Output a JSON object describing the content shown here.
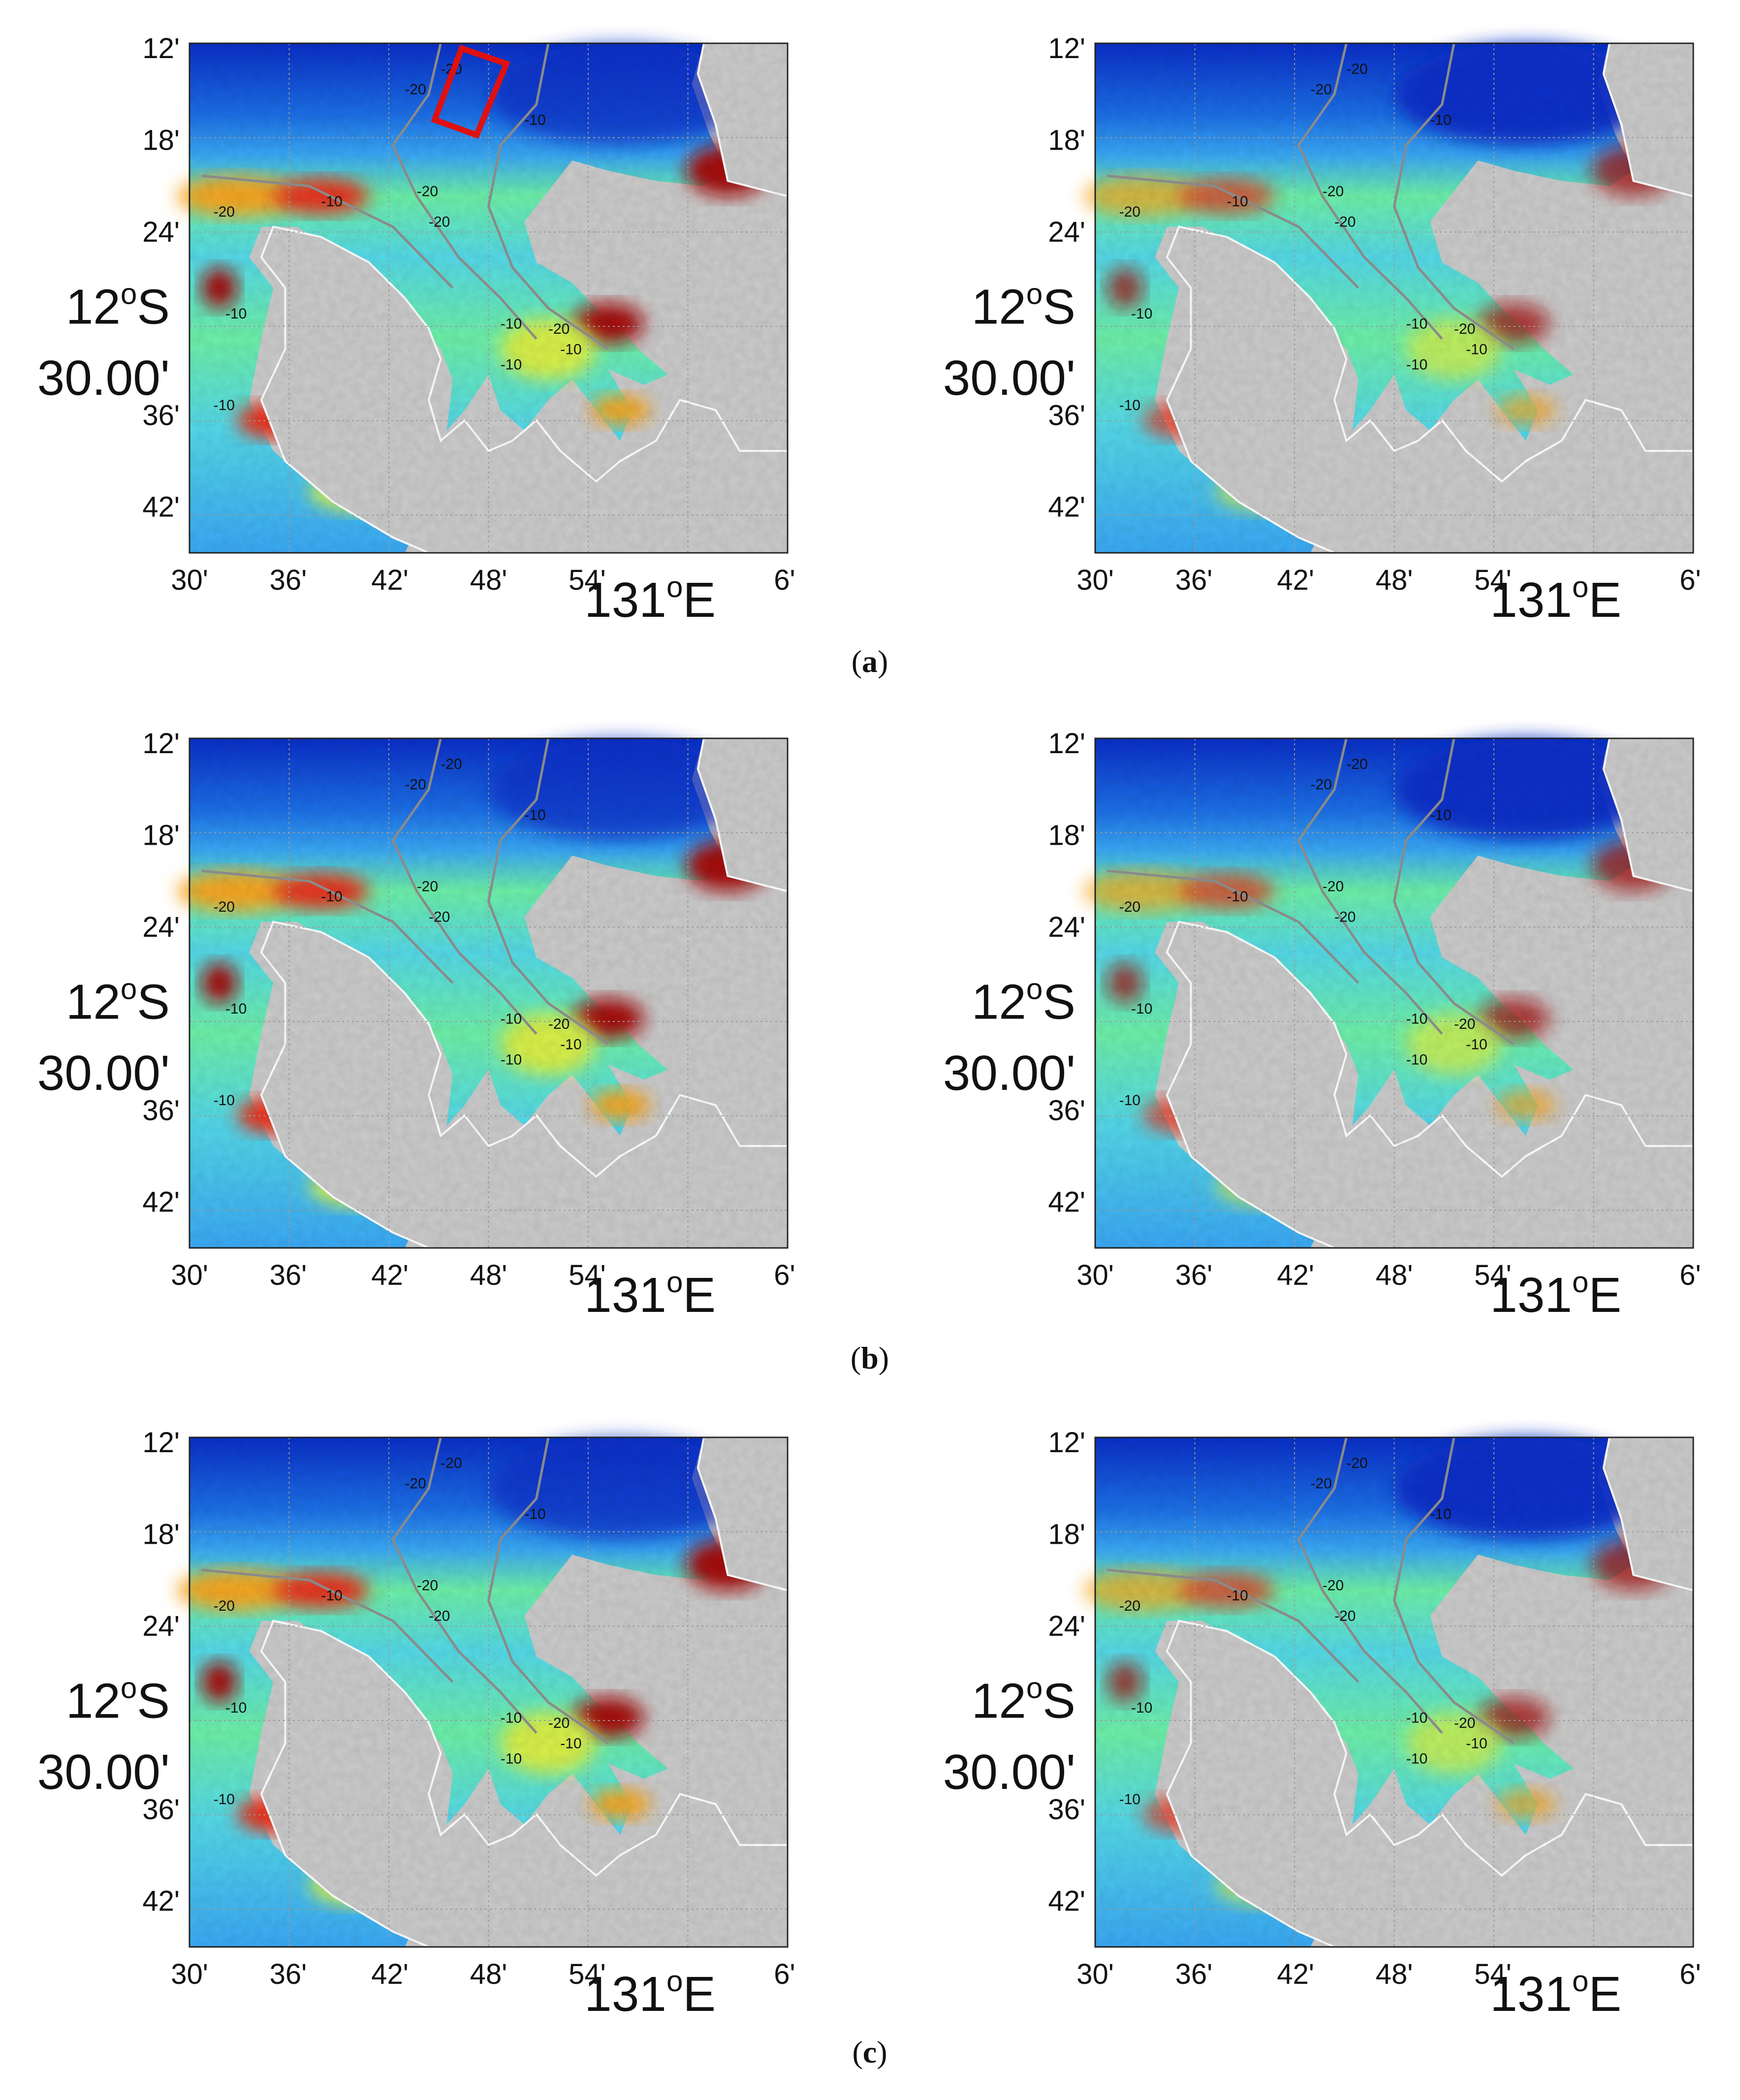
{
  "figure": {
    "lat_ticks": [
      "12'",
      "18'",
      "24'",
      "30.00'",
      "36'",
      "42'"
    ],
    "lat_degree_label": "12",
    "lat_degree_suffix": "S",
    "lon_ticks": [
      "30'",
      "36'",
      "42'",
      "48'",
      "54'",
      "6'"
    ],
    "lon_degree_label": "131",
    "lon_degree_suffix": "E",
    "degree_symbol": "o",
    "contour_labels": [
      "-20",
      "-10"
    ],
    "rows": [
      {
        "caption_open": "(",
        "caption_letter": "a",
        "caption_close": ")"
      },
      {
        "caption_open": "(",
        "caption_letter": "b",
        "caption_close": ")"
      },
      {
        "caption_open": "(",
        "caption_letter": "c",
        "caption_close": ")"
      }
    ],
    "land_color": "#cbcbcb",
    "colormap": [
      "#0a2fc8",
      "#1c6fe6",
      "#3aa9f5",
      "#55d9e8",
      "#6ef0a8",
      "#d8f04a",
      "#f5a623",
      "#e8331c",
      "#a40808"
    ],
    "contour_color": "#8a8a8a",
    "study_box_color": "#e01010"
  }
}
